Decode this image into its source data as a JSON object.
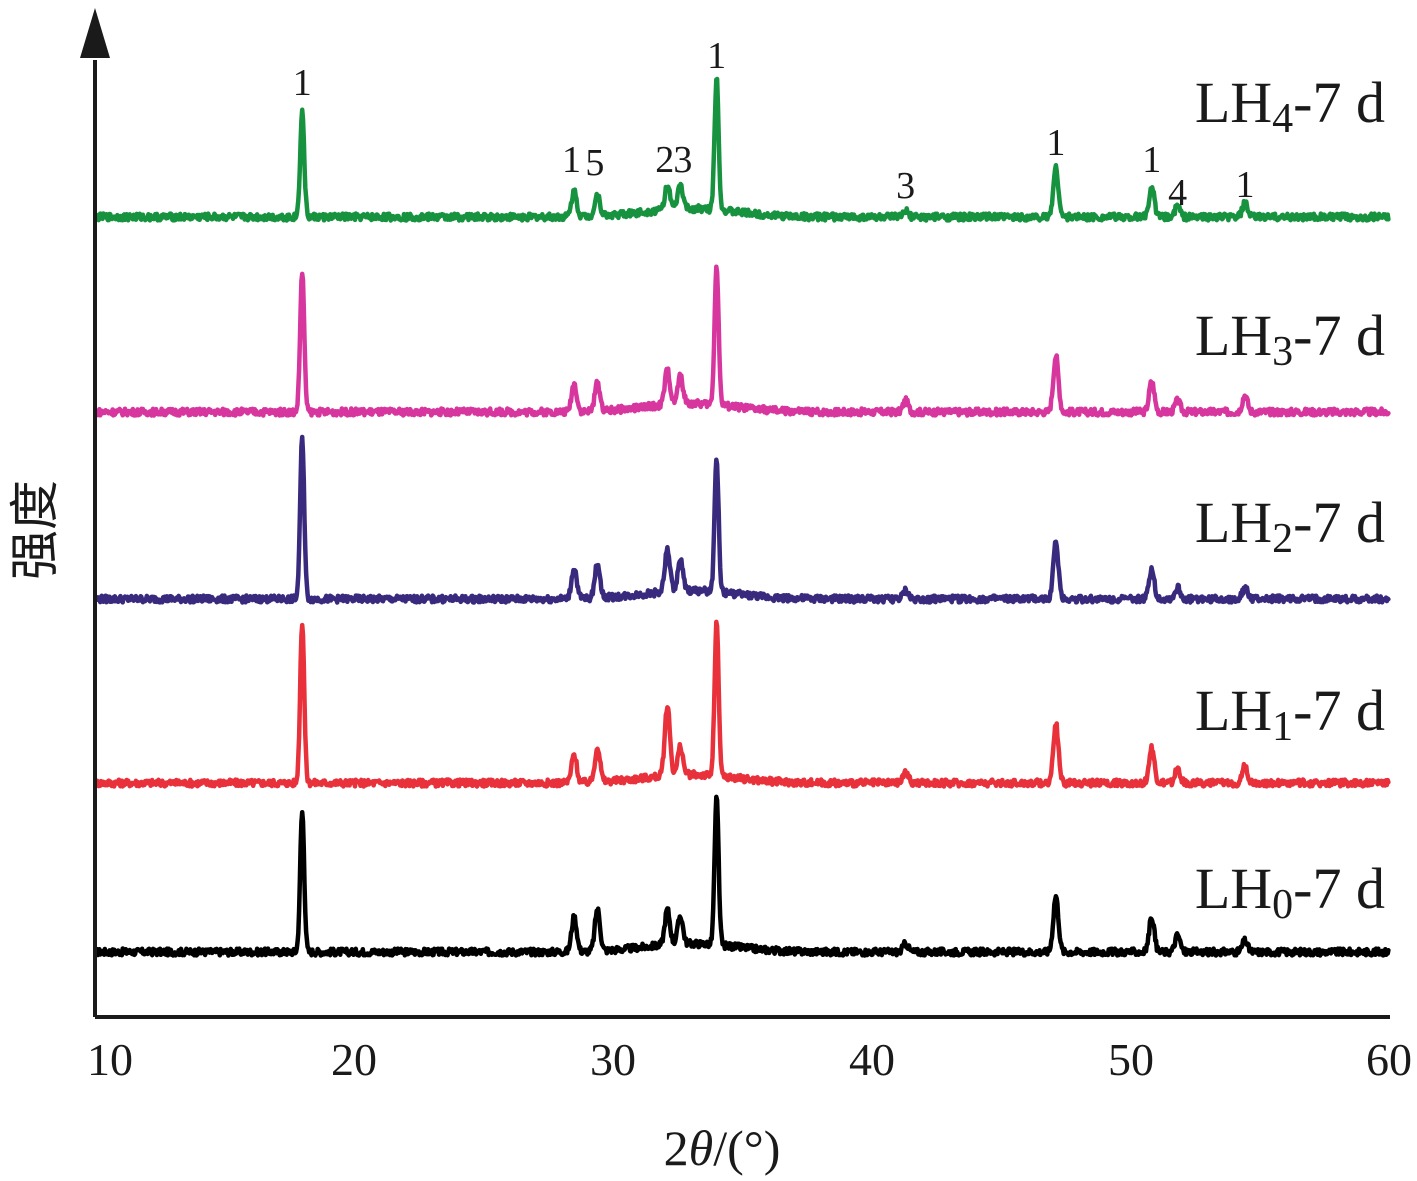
{
  "chart_data": {
    "type": "line",
    "xlabel": "2θ/(°)",
    "ylabel": "强度",
    "xlim": [
      10,
      60
    ],
    "x_ticks": [
      10,
      20,
      30,
      40,
      50,
      60
    ],
    "y_ticks_shown": false,
    "grid": false,
    "legend": "labels placed at right end of each curve",
    "series": [
      {
        "name": "LH0-7 d",
        "label_main": "LH",
        "label_sub": "0",
        "label_tail": "-7 d",
        "color": "#000000",
        "peaks": [
          [
            18.0,
            1.0
          ],
          [
            28.5,
            0.25
          ],
          [
            29.4,
            0.3
          ],
          [
            32.1,
            0.25
          ],
          [
            32.6,
            0.2
          ],
          [
            34.0,
            1.05
          ],
          [
            47.1,
            0.4
          ],
          [
            50.8,
            0.25
          ],
          [
            51.8,
            0.12
          ],
          [
            54.4,
            0.08
          ],
          [
            41.3,
            0.06
          ]
        ]
      },
      {
        "name": "LH1-7 d",
        "label_main": "LH",
        "label_sub": "1",
        "label_tail": "-7 d",
        "color": "#e8313a",
        "peaks": [
          [
            18.0,
            1.15
          ],
          [
            28.5,
            0.2
          ],
          [
            29.4,
            0.25
          ],
          [
            32.1,
            0.5
          ],
          [
            32.6,
            0.2
          ],
          [
            34.0,
            1.1
          ],
          [
            47.1,
            0.42
          ],
          [
            50.8,
            0.25
          ],
          [
            51.8,
            0.1
          ],
          [
            54.4,
            0.12
          ],
          [
            41.3,
            0.08
          ]
        ]
      },
      {
        "name": "LH2-7 d",
        "label_main": "LH",
        "label_sub": "2",
        "label_tail": "-7 d",
        "color": "#3a2a7e",
        "peaks": [
          [
            18.0,
            1.15
          ],
          [
            28.5,
            0.22
          ],
          [
            29.4,
            0.25
          ],
          [
            32.1,
            0.3
          ],
          [
            32.6,
            0.22
          ],
          [
            34.0,
            0.95
          ],
          [
            47.1,
            0.4
          ],
          [
            50.8,
            0.22
          ],
          [
            51.8,
            0.08
          ],
          [
            54.4,
            0.08
          ],
          [
            41.3,
            0.06
          ]
        ]
      },
      {
        "name": "LH3-7 d",
        "label_main": "LH",
        "label_sub": "3",
        "label_tail": "-7 d",
        "color": "#d6369e",
        "peaks": [
          [
            18.0,
            1.0
          ],
          [
            28.5,
            0.2
          ],
          [
            29.4,
            0.2
          ],
          [
            32.1,
            0.25
          ],
          [
            32.6,
            0.2
          ],
          [
            34.0,
            1.0
          ],
          [
            47.1,
            0.4
          ],
          [
            50.8,
            0.22
          ],
          [
            51.8,
            0.08
          ],
          [
            54.4,
            0.12
          ],
          [
            41.3,
            0.08
          ]
        ]
      },
      {
        "name": "LH4-7 d",
        "label_main": "LH",
        "label_sub": "4",
        "label_tail": "-7 d",
        "color": "#17923f",
        "peaks": [
          [
            18.0,
            0.75
          ],
          [
            28.5,
            0.18
          ],
          [
            29.4,
            0.15
          ],
          [
            32.1,
            0.17
          ],
          [
            32.6,
            0.17
          ],
          [
            34.0,
            0.95
          ],
          [
            47.1,
            0.35
          ],
          [
            50.8,
            0.22
          ],
          [
            51.8,
            0.08
          ],
          [
            54.4,
            0.1
          ],
          [
            41.3,
            0.04
          ]
        ]
      }
    ],
    "peak_annotations": [
      {
        "text": "1",
        "x": 18.0
      },
      {
        "text": "1",
        "x": 28.4
      },
      {
        "text": "5",
        "x": 29.3
      },
      {
        "text": "2",
        "x": 32.0
      },
      {
        "text": "3",
        "x": 32.7
      },
      {
        "text": "1",
        "x": 34.0
      },
      {
        "text": "3",
        "x": 41.3
      },
      {
        "text": "1",
        "x": 47.1
      },
      {
        "text": "1",
        "x": 50.8
      },
      {
        "text": "4",
        "x": 51.8
      },
      {
        "text": "1",
        "x": 54.4
      }
    ]
  }
}
